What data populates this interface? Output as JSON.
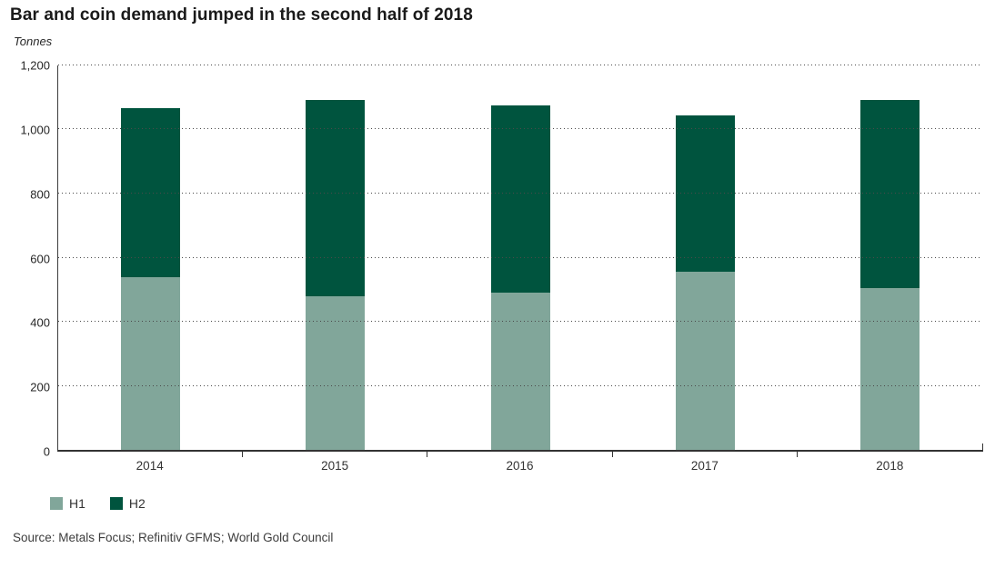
{
  "page": {
    "title": "Bar and coin demand jumped in the second half of 2018",
    "unit_label": "Tonnes",
    "source": "Source: Metals Focus; Refinitiv GFMS; World Gold Council"
  },
  "colors": {
    "h1": "#81A69A",
    "h2": "#00543E",
    "axis": "#3d3d3d",
    "grid_dots": "#4a4a4a"
  },
  "chart_data": {
    "type": "bar",
    "stacked": true,
    "title": "Bar and coin demand jumped in the second half of 2018",
    "xlabel": "",
    "ylabel": "Tonnes",
    "ylim": [
      0,
      1200
    ],
    "grid": "horizontal dotted lines at every 200",
    "legend_position": "bottom-left",
    "categories": [
      "2014",
      "2015",
      "2016",
      "2017",
      "2018"
    ],
    "series": [
      {
        "name": "H1",
        "color": "#81A69A",
        "values": [
          540,
          479,
          491,
          556,
          506
        ]
      },
      {
        "name": "H2",
        "color": "#00543E",
        "values": [
          526,
          613,
          583,
          488,
          585
        ]
      }
    ],
    "totals": [
      1066,
      1092,
      1074,
      1044,
      1091
    ],
    "yticks": [
      "1,200",
      "1,000",
      "800",
      "600",
      "400",
      "200",
      "0"
    ]
  }
}
